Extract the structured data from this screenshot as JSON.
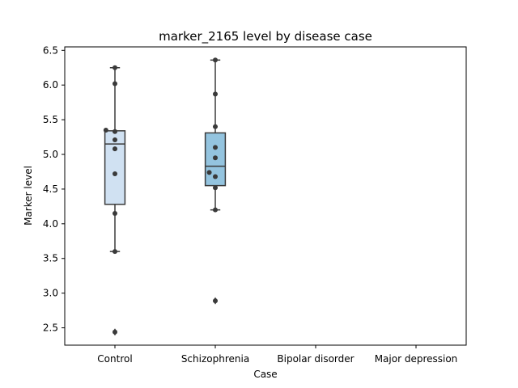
{
  "chart_data": {
    "type": "box",
    "title": "marker_2165 level by disease case",
    "xlabel": "Case",
    "ylabel": "Marker level",
    "categories": [
      "Control",
      "Schizophrenia",
      "Bipolar disorder",
      "Major depression"
    ],
    "ylim": [
      2.25,
      6.55
    ],
    "yticks": [
      2.5,
      3.0,
      3.5,
      4.0,
      4.5,
      5.0,
      5.5,
      6.0,
      6.5
    ],
    "grid": false,
    "boxes": [
      {
        "category": "Control",
        "q1": 4.28,
        "median": 5.15,
        "q3": 5.34,
        "whisker_low": 3.6,
        "whisker_high": 6.25,
        "outliers": [
          2.44
        ],
        "color": "#d0e1f2"
      },
      {
        "category": "Schizophrenia",
        "q1": 4.55,
        "median": 4.83,
        "q3": 5.31,
        "whisker_low": 4.2,
        "whisker_high": 6.36,
        "outliers": [
          2.89
        ],
        "color": "#94c4df"
      }
    ],
    "points": [
      {
        "category": "Control",
        "values": [
          6.25,
          6.02,
          5.35,
          5.33,
          5.21,
          5.08,
          4.72,
          4.15,
          3.6,
          2.44
        ],
        "offsets": [
          0.0,
          0.0,
          -0.09,
          0.0,
          0.0,
          0.0,
          0.0,
          0.0,
          0.0,
          0.0
        ]
      },
      {
        "category": "Schizophrenia",
        "values": [
          6.36,
          5.87,
          5.4,
          5.1,
          4.95,
          4.74,
          4.68,
          4.52,
          4.2,
          2.89
        ],
        "offsets": [
          0.0,
          0.0,
          0.0,
          0.0,
          0.0,
          -0.06,
          0.0,
          0.0,
          0.0,
          0.0
        ]
      }
    ],
    "colors": {
      "line": "#3a3a3a",
      "point": "#3a3a3a"
    }
  }
}
